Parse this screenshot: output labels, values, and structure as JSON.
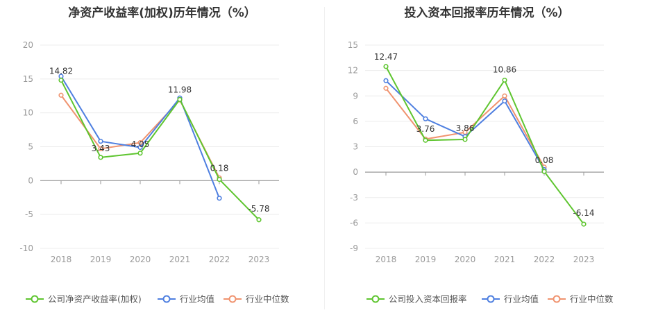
{
  "chart_data": [
    {
      "type": "line",
      "title": "净资产收益率(加权)历年情况（%）",
      "categories": [
        "2018",
        "2019",
        "2020",
        "2021",
        "2022",
        "2023"
      ],
      "ylim": [
        -10,
        20
      ],
      "yticks": [
        "20",
        "15",
        "10",
        "5",
        "0",
        "-5",
        "-10"
      ],
      "ytick_values": [
        20,
        15,
        10,
        5,
        0,
        -5,
        -10
      ],
      "grid": true,
      "legend_position": "bottom",
      "series": [
        {
          "name": "公司净资产收益率(加权)",
          "color": "#5ec52f",
          "values": [
            14.82,
            3.43,
            4.05,
            11.98,
            0.18,
            -5.78
          ],
          "labels": [
            "14.82",
            "3.43",
            "4.05",
            "11.98",
            "0.18",
            "-5.78"
          ]
        },
        {
          "name": "行业均值",
          "color": "#4e7fe0",
          "values": [
            15.4,
            5.8,
            4.9,
            12.2,
            -2.6,
            null
          ]
        },
        {
          "name": "行业中位数",
          "color": "#f0936f",
          "values": [
            12.6,
            4.7,
            5.6,
            11.9,
            0.4,
            null
          ]
        }
      ]
    },
    {
      "type": "line",
      "title": "投入资本回报率历年情况（%）",
      "categories": [
        "2018",
        "2019",
        "2020",
        "2021",
        "2022",
        "2023"
      ],
      "ylim": [
        -9,
        15
      ],
      "yticks": [
        "15",
        "12",
        "9",
        "6",
        "3",
        "0",
        "-3",
        "-6",
        "-9"
      ],
      "ytick_values": [
        15,
        12,
        9,
        6,
        3,
        0,
        -3,
        -6,
        -9
      ],
      "grid": true,
      "legend_position": "bottom",
      "series": [
        {
          "name": "公司投入资本回报率",
          "color": "#5ec52f",
          "values": [
            12.47,
            3.76,
            3.86,
            10.86,
            0.08,
            -6.14
          ],
          "labels": [
            "12.47",
            "3.76",
            "3.86",
            "10.86",
            "0.08",
            "-6.14"
          ]
        },
        {
          "name": "行业均值",
          "color": "#4e7fe0",
          "values": [
            10.8,
            6.3,
            4.2,
            8.4,
            0.3,
            null
          ]
        },
        {
          "name": "行业中位数",
          "color": "#f0936f",
          "values": [
            9.9,
            3.9,
            4.7,
            9.0,
            0.6,
            null
          ]
        }
      ]
    }
  ]
}
